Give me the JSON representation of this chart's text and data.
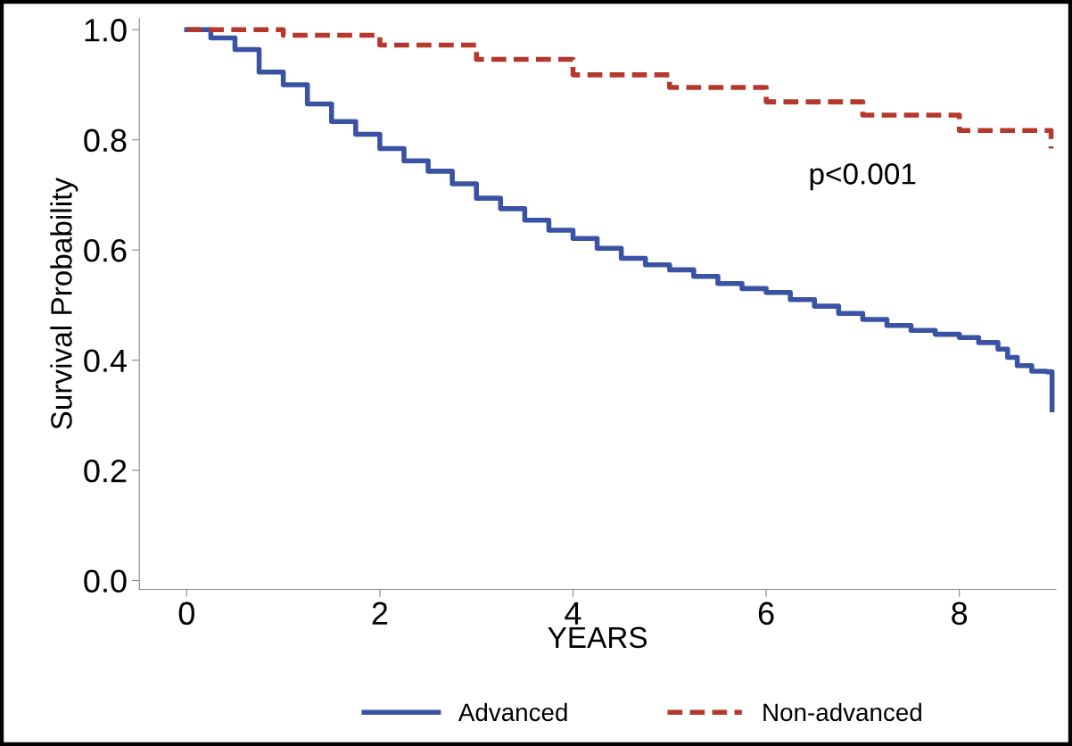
{
  "chart_data": {
    "type": "step",
    "xlabel": "YEARS",
    "ylabel": "Survival Probability",
    "xlim": [
      -0.49,
      9.0
    ],
    "ylim": [
      -0.016,
      1.02
    ],
    "xticks": [
      0,
      2,
      4,
      6,
      8
    ],
    "yticks": [
      {
        "value": 0,
        "label": "0.0"
      },
      {
        "value": 0.2,
        "label": "0.2"
      },
      {
        "value": 0.4,
        "label": "0.4"
      },
      {
        "value": 0.6,
        "label": "0.6"
      },
      {
        "value": 0.8,
        "label": "0.8"
      },
      {
        "value": 1,
        "label": "1.0"
      }
    ],
    "grid": false,
    "legend": "bottom",
    "annotations": [
      "p<0.001"
    ],
    "series": [
      {
        "name": "Advanced",
        "color": "#3a52a4",
        "line_style": "solid",
        "x": [
          0,
          0.25,
          0.5,
          0.75,
          1,
          1.25,
          1.5,
          1.75,
          2,
          2.25,
          2.5,
          2.75,
          3,
          3.25,
          3.5,
          3.75,
          4,
          4.25,
          4.5,
          4.75,
          5,
          5.25,
          5.5,
          5.75,
          6,
          6.25,
          6.5,
          6.75,
          7,
          7.25,
          7.5,
          7.75,
          8,
          8.2,
          8.4,
          8.5,
          8.6,
          8.75,
          8.9,
          8.96
        ],
        "values": [
          1.0,
          0.985,
          0.964,
          0.923,
          0.9,
          0.865,
          0.833,
          0.81,
          0.784,
          0.762,
          0.743,
          0.72,
          0.694,
          0.675,
          0.654,
          0.636,
          0.621,
          0.603,
          0.585,
          0.573,
          0.564,
          0.552,
          0.539,
          0.53,
          0.523,
          0.51,
          0.498,
          0.485,
          0.474,
          0.463,
          0.454,
          0.447,
          0.441,
          0.432,
          0.42,
          0.405,
          0.39,
          0.38,
          0.379,
          0.31
        ]
      },
      {
        "name": "Non-advanced",
        "color": "#b5382c",
        "line_style": "dashed",
        "x": [
          0,
          1,
          2,
          3,
          4,
          5,
          6,
          7,
          8,
          8.95
        ],
        "values": [
          1.0,
          0.99,
          0.972,
          0.946,
          0.918,
          0.895,
          0.869,
          0.845,
          0.817,
          0.784
        ]
      }
    ]
  }
}
